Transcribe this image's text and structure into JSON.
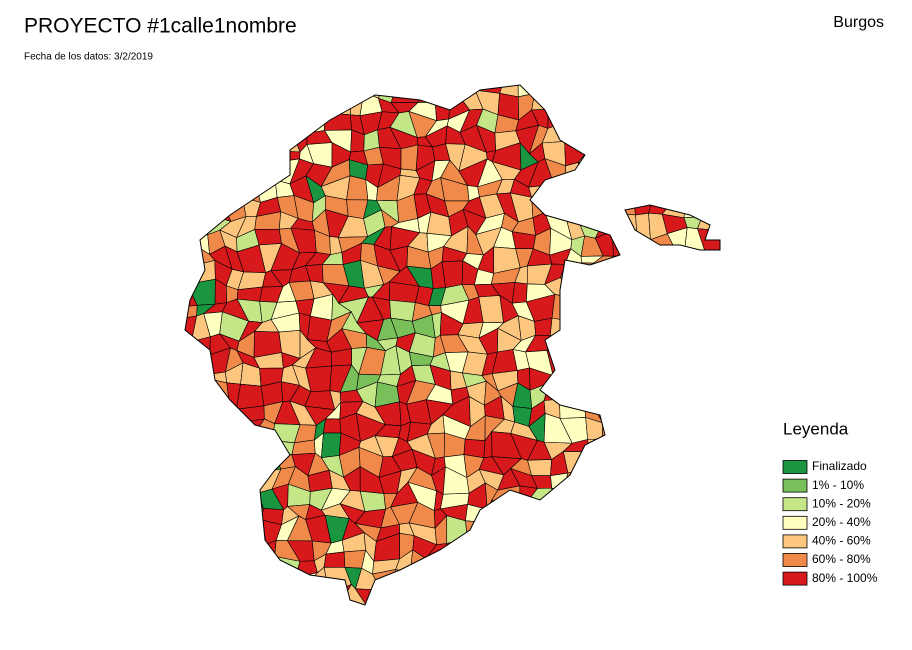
{
  "header": {
    "title": "PROYECTO #1calle1nombre",
    "date": "Fecha de los datos: 3/2/2019",
    "region": "Burgos"
  },
  "legend": {
    "title": "Leyenda",
    "items": [
      {
        "label": "Finalizado",
        "color": "#1a9641"
      },
      {
        "label": "1% - 10%",
        "color": "#79bf5a"
      },
      {
        "label": "10% - 20%",
        "color": "#c4e687"
      },
      {
        "label": "20% - 40%",
        "color": "#ffffc0"
      },
      {
        "label": "40% - 60%",
        "color": "#fdc67e"
      },
      {
        "label": "60% - 80%",
        "color": "#f08a4b"
      },
      {
        "label": "80% - 100%",
        "color": "#d7191c"
      }
    ]
  }
}
